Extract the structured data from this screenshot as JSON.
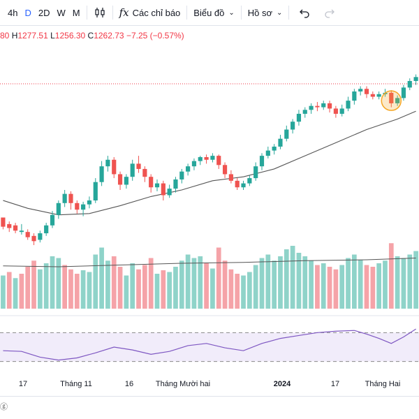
{
  "toolbar": {
    "intervals": [
      {
        "label": "4h",
        "active": false
      },
      {
        "label": "D",
        "active": true
      },
      {
        "label": "2D",
        "active": false
      },
      {
        "label": "W",
        "active": false
      },
      {
        "label": "M",
        "active": false
      }
    ],
    "indicators_label": "Các chỉ báo",
    "chart_type_label": "Biểu đồ",
    "profile_label": "Hồ sơ",
    "icons": [
      "candlestick-icon",
      "function-icon",
      "undo-icon",
      "redo-icon"
    ]
  },
  "ohlc": {
    "open_fragment": "80",
    "high_key": "H",
    "high": "1277.51",
    "low_key": "L",
    "low": "1256.30",
    "close_key": "C",
    "close": "1262.73",
    "change": "−7.25 (−0.57%)"
  },
  "colors": {
    "up": "#26a69a",
    "down": "#ef5350",
    "up_volume": "#8fd3c9",
    "down_volume": "#f5a3a8",
    "ma_line": "#555555",
    "rsi_line": "#7e57c2",
    "rsi_band": "#f1ecfa",
    "price_line": "#f23645",
    "highlight": "#f5a623"
  },
  "x_axis_labels": [
    {
      "text": "17",
      "bold": false
    },
    {
      "text": "Tháng 11",
      "bold": false
    },
    {
      "text": "16",
      "bold": false
    },
    {
      "text": "Tháng Mười hai",
      "bold": false
    },
    {
      "text": "2024",
      "bold": true
    },
    {
      "text": "17",
      "bold": false
    },
    {
      "text": "Tháng Hai",
      "bold": false
    }
  ],
  "chart_data": {
    "type": "candlestick",
    "candles": [
      [
        1,
        139,
        132,
        136,
        130
      ],
      [
        2,
        134,
        131,
        136,
        128
      ],
      [
        3,
        133,
        129,
        135,
        127
      ],
      [
        4,
        128,
        129,
        134,
        126
      ],
      [
        5,
        128,
        124,
        130,
        122
      ],
      [
        6,
        125,
        121,
        127,
        118
      ],
      [
        7,
        122,
        127,
        129,
        120
      ],
      [
        8,
        127,
        133,
        135,
        125
      ],
      [
        9,
        133,
        141,
        144,
        131
      ],
      [
        10,
        141,
        150,
        152,
        138
      ],
      [
        11,
        150,
        157,
        160,
        147
      ],
      [
        12,
        157,
        150,
        159,
        145
      ],
      [
        13,
        150,
        145,
        152,
        142
      ],
      [
        14,
        145,
        149,
        151,
        140
      ],
      [
        15,
        149,
        152,
        155,
        146
      ],
      [
        16,
        152,
        166,
        169,
        150
      ],
      [
        17,
        166,
        178,
        182,
        163
      ],
      [
        18,
        178,
        183,
        186,
        174
      ],
      [
        19,
        183,
        172,
        185,
        169
      ],
      [
        20,
        172,
        164,
        174,
        160
      ],
      [
        21,
        164,
        170,
        172,
        161
      ],
      [
        22,
        170,
        180,
        183,
        167
      ],
      [
        23,
        180,
        176,
        186,
        173
      ],
      [
        24,
        176,
        170,
        178,
        166
      ],
      [
        25,
        170,
        162,
        172,
        158
      ],
      [
        26,
        162,
        165,
        168,
        159
      ],
      [
        27,
        165,
        156,
        167,
        152
      ],
      [
        28,
        156,
        161,
        164,
        154
      ],
      [
        29,
        161,
        168,
        170,
        158
      ],
      [
        30,
        168,
        174,
        176,
        165
      ],
      [
        31,
        174,
        178,
        180,
        171
      ],
      [
        32,
        178,
        182,
        184,
        175
      ],
      [
        33,
        182,
        185,
        186,
        179
      ],
      [
        34,
        185,
        183,
        187,
        180
      ],
      [
        35,
        183,
        186,
        188,
        181
      ],
      [
        36,
        186,
        179,
        187,
        176
      ],
      [
        37,
        179,
        172,
        181,
        169
      ],
      [
        38,
        172,
        167,
        175,
        165
      ],
      [
        39,
        167,
        162,
        169,
        160
      ],
      [
        40,
        162,
        165,
        167,
        160
      ],
      [
        41,
        165,
        169,
        171,
        163
      ],
      [
        42,
        169,
        178,
        181,
        167
      ],
      [
        43,
        178,
        186,
        188,
        175
      ],
      [
        44,
        186,
        190,
        193,
        184
      ],
      [
        45,
        190,
        193,
        195,
        187
      ],
      [
        46,
        193,
        199,
        202,
        191
      ],
      [
        47,
        199,
        206,
        209,
        197
      ],
      [
        48,
        206,
        212,
        214,
        203
      ],
      [
        49,
        212,
        218,
        221,
        209
      ],
      [
        50,
        218,
        221,
        223,
        215
      ],
      [
        51,
        221,
        224,
        226,
        218
      ],
      [
        52,
        224,
        223,
        227,
        220
      ],
      [
        53,
        223,
        226,
        228,
        221
      ],
      [
        54,
        226,
        222,
        228,
        219
      ],
      [
        55,
        222,
        218,
        224,
        215
      ],
      [
        56,
        218,
        222,
        225,
        216
      ],
      [
        57,
        222,
        228,
        231,
        220
      ],
      [
        58,
        228,
        235,
        237,
        225
      ],
      [
        59,
        235,
        237,
        239,
        232
      ],
      [
        60,
        237,
        233,
        239,
        230
      ],
      [
        61,
        233,
        231,
        235,
        229
      ],
      [
        62,
        231,
        233,
        235,
        229
      ],
      [
        63,
        233,
        234,
        237,
        231
      ],
      [
        64,
        234,
        226,
        236,
        223
      ],
      [
        65,
        226,
        230,
        232,
        224
      ],
      [
        66,
        230,
        238,
        240,
        228
      ],
      [
        67,
        238,
        243,
        245,
        236
      ],
      [
        68,
        243,
        246,
        248,
        240
      ]
    ],
    "volumes": [
      [
        1,
        38,
        true
      ],
      [
        2,
        42,
        false
      ],
      [
        3,
        35,
        true
      ],
      [
        4,
        40,
        false
      ],
      [
        5,
        48,
        false
      ],
      [
        6,
        55,
        false
      ],
      [
        7,
        45,
        true
      ],
      [
        8,
        52,
        true
      ],
      [
        9,
        60,
        true
      ],
      [
        10,
        58,
        true
      ],
      [
        11,
        50,
        false
      ],
      [
        12,
        45,
        false
      ],
      [
        13,
        40,
        false
      ],
      [
        14,
        44,
        true
      ],
      [
        15,
        42,
        true
      ],
      [
        16,
        62,
        true
      ],
      [
        17,
        70,
        true
      ],
      [
        18,
        55,
        true
      ],
      [
        19,
        60,
        false
      ],
      [
        20,
        48,
        false
      ],
      [
        21,
        38,
        true
      ],
      [
        22,
        52,
        true
      ],
      [
        23,
        45,
        false
      ],
      [
        24,
        50,
        false
      ],
      [
        25,
        58,
        false
      ],
      [
        26,
        40,
        true
      ],
      [
        27,
        44,
        false
      ],
      [
        28,
        42,
        true
      ],
      [
        29,
        48,
        true
      ],
      [
        30,
        55,
        true
      ],
      [
        31,
        62,
        true
      ],
      [
        32,
        58,
        true
      ],
      [
        33,
        60,
        true
      ],
      [
        34,
        52,
        false
      ],
      [
        35,
        46,
        true
      ],
      [
        36,
        70,
        false
      ],
      [
        37,
        55,
        false
      ],
      [
        38,
        45,
        false
      ],
      [
        39,
        40,
        false
      ],
      [
        40,
        38,
        true
      ],
      [
        41,
        42,
        true
      ],
      [
        42,
        50,
        true
      ],
      [
        43,
        58,
        true
      ],
      [
        44,
        62,
        true
      ],
      [
        45,
        55,
        true
      ],
      [
        46,
        60,
        true
      ],
      [
        47,
        68,
        true
      ],
      [
        48,
        72,
        true
      ],
      [
        49,
        64,
        true
      ],
      [
        50,
        60,
        true
      ],
      [
        51,
        55,
        true
      ],
      [
        52,
        50,
        false
      ],
      [
        53,
        52,
        true
      ],
      [
        54,
        48,
        false
      ],
      [
        55,
        45,
        false
      ],
      [
        56,
        50,
        true
      ],
      [
        57,
        58,
        true
      ],
      [
        58,
        62,
        true
      ],
      [
        59,
        56,
        true
      ],
      [
        60,
        50,
        false
      ],
      [
        61,
        48,
        false
      ],
      [
        62,
        52,
        true
      ],
      [
        63,
        55,
        true
      ],
      [
        64,
        75,
        false
      ],
      [
        65,
        60,
        true
      ],
      [
        66,
        58,
        true
      ],
      [
        67,
        62,
        true
      ],
      [
        68,
        66,
        true
      ]
    ],
    "ma": [
      [
        1,
        152
      ],
      [
        5,
        146
      ],
      [
        10,
        141
      ],
      [
        15,
        142
      ],
      [
        20,
        148
      ],
      [
        25,
        155
      ],
      [
        30,
        160
      ],
      [
        35,
        167
      ],
      [
        40,
        170
      ],
      [
        45,
        176
      ],
      [
        50,
        186
      ],
      [
        55,
        196
      ],
      [
        60,
        206
      ],
      [
        65,
        214
      ],
      [
        68,
        220
      ]
    ],
    "volume_ma": [
      [
        1,
        49
      ],
      [
        10,
        48
      ],
      [
        20,
        50
      ],
      [
        30,
        52
      ],
      [
        40,
        53
      ],
      [
        50,
        55
      ],
      [
        60,
        56
      ],
      [
        68,
        58
      ]
    ],
    "rsi": [
      [
        1,
        45
      ],
      [
        4,
        44
      ],
      [
        7,
        36
      ],
      [
        10,
        32
      ],
      [
        13,
        35
      ],
      [
        16,
        42
      ],
      [
        19,
        50
      ],
      [
        22,
        46
      ],
      [
        25,
        40
      ],
      [
        28,
        44
      ],
      [
        31,
        52
      ],
      [
        34,
        55
      ],
      [
        37,
        49
      ],
      [
        40,
        45
      ],
      [
        43,
        55
      ],
      [
        46,
        62
      ],
      [
        49,
        66
      ],
      [
        52,
        70
      ],
      [
        55,
        72
      ],
      [
        58,
        73
      ],
      [
        60,
        68
      ],
      [
        62,
        62
      ],
      [
        64,
        55
      ],
      [
        66,
        64
      ],
      [
        68,
        75
      ]
    ],
    "rsi_bands": [
      70,
      30
    ],
    "ylim": [
      110,
      260
    ],
    "volume_max": 80,
    "grid": false
  }
}
